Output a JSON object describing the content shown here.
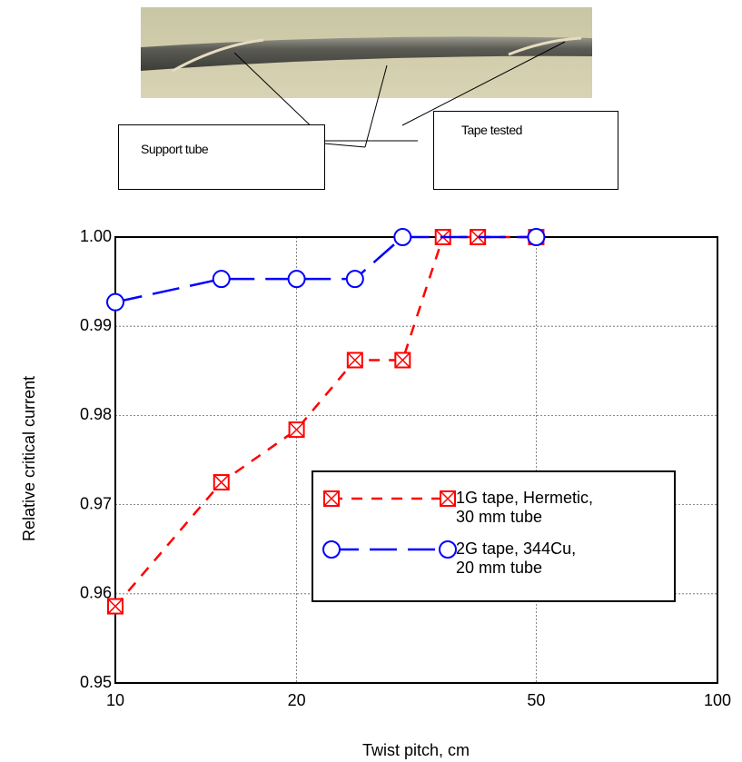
{
  "photo": {
    "labels": [
      "Support tube",
      "Tape tested"
    ]
  },
  "chart_data": {
    "type": "line",
    "xlabel": "Twist pitch, cm",
    "ylabel": "Relative critical current",
    "xscale": "log",
    "grid": true,
    "legend": "right",
    "xlim": [
      10,
      100
    ],
    "xticks": [
      10,
      20,
      50,
      100
    ],
    "ylim": [
      0.95,
      1.0
    ],
    "yticks": [
      0.95,
      0.96,
      0.97,
      0.98,
      0.99,
      {
        "value": 1.0,
        "label": "1.00"
      }
    ],
    "series": [
      {
        "name": "1G tape, Hermetic,\n30 mm tube",
        "color": "#ff0000",
        "marker": "square-x",
        "x": [
          10,
          15,
          20,
          25,
          30,
          35,
          40,
          50
        ],
        "values": [
          0.9586,
          0.9725,
          0.9784,
          0.9862,
          0.9862,
          1.0,
          1.0,
          1.0
        ]
      },
      {
        "name": "2G tape, 344Cu,\n20 mm tube",
        "color": "#0000ff",
        "marker": "circle",
        "x": [
          10,
          15,
          20,
          25,
          30,
          50
        ],
        "values": [
          0.9927,
          0.9953,
          0.9953,
          0.9953,
          1.0,
          1.0
        ]
      }
    ]
  }
}
